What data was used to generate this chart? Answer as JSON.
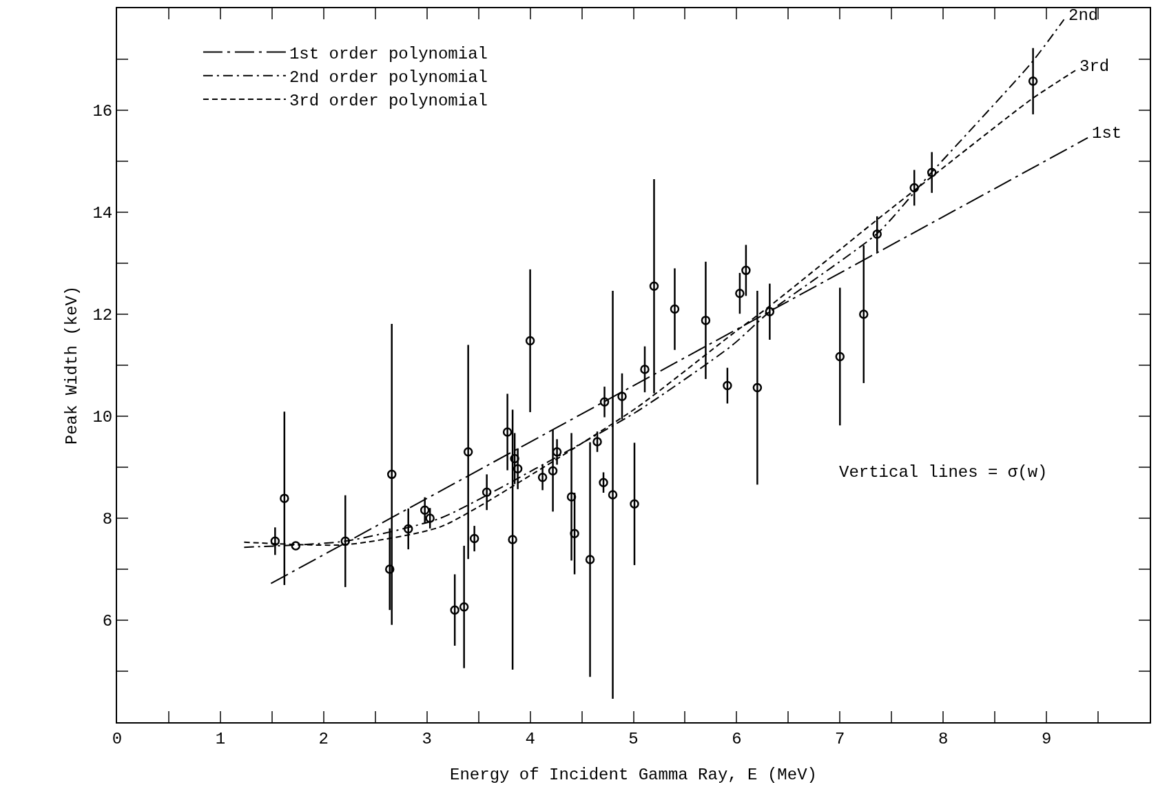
{
  "chart_data": {
    "type": "scatter",
    "xlabel": "Energy of Incident Gamma Ray, E (MeV)",
    "ylabel": "Peak Width (keV)",
    "xlim": [
      0,
      10
    ],
    "ylim": [
      4,
      18
    ],
    "xticks": [
      0,
      {
        "value": 0.5,
        "label": null
      },
      1,
      {
        "value": 1.5,
        "label": null
      },
      2,
      {
        "value": 2.5,
        "label": null
      },
      3,
      {
        "value": 3.5,
        "label": null
      },
      4,
      {
        "value": 4.5,
        "label": null
      },
      5,
      {
        "value": 5.5,
        "label": null
      },
      6,
      {
        "value": 6.5,
        "label": null
      },
      7,
      {
        "value": 7.5,
        "label": null
      },
      8,
      {
        "value": 8.5,
        "label": null
      },
      9,
      {
        "value": 9.5,
        "label": null
      }
    ],
    "yticks": [
      {
        "value": 5,
        "label": null
      },
      6,
      {
        "value": 7,
        "label": null
      },
      8,
      {
        "value": 9,
        "label": null
      },
      10,
      {
        "value": 11,
        "label": null
      },
      12,
      {
        "value": 13,
        "label": null
      },
      14,
      {
        "value": 15,
        "label": null
      },
      16,
      {
        "value": 17,
        "label": null
      }
    ],
    "grid": false,
    "legend": "top left",
    "marker": "circle",
    "series": [
      {
        "color": "#000000",
        "x": [
          1.53,
          1.62,
          1.73,
          2.21,
          2.64,
          2.66,
          2.82,
          2.98,
          3.03,
          3.27,
          3.36,
          3.4,
          3.46,
          3.58,
          3.78,
          3.83,
          3.85,
          3.88,
          4.0,
          4.12,
          4.22,
          4.26,
          4.4,
          4.43,
          4.58,
          4.65,
          4.71,
          4.72,
          4.8,
          4.89,
          5.01,
          5.11,
          5.2,
          5.4,
          5.7,
          5.91,
          6.03,
          6.09,
          6.2,
          6.32,
          7.0,
          7.23,
          7.36,
          7.72,
          7.89,
          8.87
        ],
        "values": [
          7.55,
          8.39,
          7.46,
          7.55,
          7.0,
          8.86,
          7.79,
          8.16,
          8.0,
          6.2,
          6.26,
          9.3,
          7.6,
          8.51,
          9.69,
          7.58,
          9.17,
          8.97,
          11.48,
          8.8,
          8.93,
          9.3,
          8.42,
          7.7,
          7.19,
          9.5,
          8.7,
          10.28,
          8.46,
          10.39,
          8.28,
          10.92,
          12.55,
          12.1,
          11.88,
          10.6,
          12.41,
          12.86,
          10.56,
          12.05,
          11.17,
          12.0,
          13.57,
          14.48,
          14.78,
          16.57
        ],
        "errors": [
          0.27,
          1.7,
          null,
          0.9,
          0.8,
          2.95,
          0.4,
          0.25,
          0.2,
          0.7,
          1.2,
          2.1,
          0.25,
          0.35,
          0.75,
          2.55,
          0.5,
          0.4,
          1.4,
          0.25,
          0.8,
          0.25,
          1.25,
          0.8,
          2.3,
          0.2,
          0.2,
          0.3,
          4.0,
          0.45,
          1.2,
          0.45,
          2.1,
          0.8,
          1.15,
          0.35,
          0.4,
          0.5,
          1.9,
          0.55,
          1.35,
          1.35,
          0.35,
          0.35,
          0.4,
          0.65
        ]
      },
      {
        "type": "line",
        "name": "1st order polynomial",
        "color": "#000000",
        "line_style": "longdashdot",
        "marker": "none",
        "x": [
          1.49,
          9.4
        ],
        "values": [
          6.72,
          15.46
        ]
      },
      {
        "type": "line",
        "name": "2nd order polynomial",
        "color": "#000000",
        "line_style": "dashdot",
        "marker": "none",
        "x": [
          1.23,
          2.21,
          3.13,
          4.05,
          5.04,
          5.95,
          6.32,
          7.37,
          7.86,
          8.85,
          9.17
        ],
        "values": [
          7.43,
          7.55,
          8.0,
          8.97,
          10.1,
          11.38,
          12.05,
          13.6,
          14.72,
          16.92,
          17.78
        ]
      },
      {
        "type": "line",
        "name": "3rd order polynomial",
        "color": "#000000",
        "line_style": "dashed",
        "marker": "none",
        "x": [
          1.23,
          2.21,
          3.13,
          4.05,
          5.04,
          5.95,
          6.32,
          7.37,
          7.86,
          8.85,
          9.28
        ],
        "values": [
          7.53,
          7.48,
          7.83,
          8.9,
          10.18,
          11.6,
          12.16,
          13.87,
          14.65,
          16.21,
          16.78
        ]
      }
    ],
    "annotations": [
      {
        "text": "2nd",
        "x": 9.17,
        "y": 17.78
      },
      {
        "text": "3rd",
        "x": 9.28,
        "y": 16.78
      },
      {
        "text": "1st",
        "x": 9.4,
        "y": 15.46
      },
      "Vertical lines = σ(w)"
    ]
  }
}
